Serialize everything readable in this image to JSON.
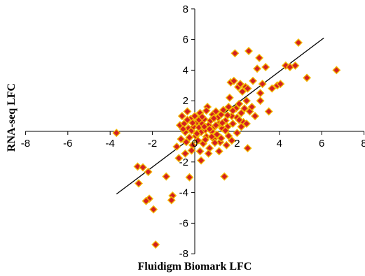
{
  "chart_data": {
    "type": "scatter",
    "title": "",
    "xlabel": "Fluidigm Biomark LFC",
    "ylabel": "RNA-seq LFC",
    "xlim": [
      -8,
      8
    ],
    "ylim": [
      -8,
      8
    ],
    "xticks": [
      -8,
      -6,
      -4,
      -2,
      0,
      2,
      4,
      6,
      8
    ],
    "yticks": [
      -8,
      -6,
      -4,
      -2,
      2,
      4,
      6,
      8
    ],
    "tick_labels_x": [
      "-8",
      "-6",
      "-4",
      "-2",
      "0",
      "2",
      "4",
      "6",
      "8"
    ],
    "tick_labels_y": [
      "-8",
      "-6",
      "-4",
      "-2",
      "2",
      "4",
      "6",
      "8"
    ],
    "grid": false,
    "legend": "none",
    "marker": {
      "shape": "diamond",
      "fill": "#D42020",
      "edge": "#F2B800"
    },
    "trendline": {
      "x": [
        -3.7,
        6.1
      ],
      "y": [
        -4.1,
        6.1
      ],
      "color": "#000000"
    },
    "points": [
      [
        -3.7,
        -0.1
      ],
      [
        -2.7,
        -2.3
      ],
      [
        -2.45,
        -2.35
      ],
      [
        -2.2,
        -2.65
      ],
      [
        -2.65,
        -3.4
      ],
      [
        -2.15,
        -4.4
      ],
      [
        -2.3,
        -4.55
      ],
      [
        -1.95,
        -5.1
      ],
      [
        -1.85,
        -7.4
      ],
      [
        -1.35,
        -2.95
      ],
      [
        -1.05,
        -4.2
      ],
      [
        -1.1,
        -4.5
      ],
      [
        -0.25,
        -3.0
      ],
      [
        -0.85,
        -1.0
      ],
      [
        -0.75,
        -1.75
      ],
      [
        -0.7,
        0.4
      ],
      [
        -0.65,
        -0.5
      ],
      [
        -0.6,
        1.0
      ],
      [
        -0.5,
        0.5
      ],
      [
        -0.45,
        -0.05
      ],
      [
        -0.4,
        -0.7
      ],
      [
        -0.35,
        1.3
      ],
      [
        -0.3,
        0.2
      ],
      [
        -0.25,
        -0.4
      ],
      [
        -0.2,
        0.8
      ],
      [
        -0.15,
        0.05
      ],
      [
        -0.1,
        -0.9
      ],
      [
        -0.05,
        0.3
      ],
      [
        0.0,
        1.0
      ],
      [
        0.05,
        -0.3
      ],
      [
        0.1,
        0.6
      ],
      [
        0.15,
        -0.6
      ],
      [
        0.2,
        0.25
      ],
      [
        0.25,
        1.2
      ],
      [
        0.3,
        -0.05
      ],
      [
        0.35,
        0.5
      ],
      [
        0.4,
        -0.8
      ],
      [
        0.45,
        0.8
      ],
      [
        0.5,
        0.1
      ],
      [
        0.55,
        -0.35
      ],
      [
        0.6,
        1.6
      ],
      [
        0.65,
        0.4
      ],
      [
        0.7,
        -1.1
      ],
      [
        0.75,
        0.7
      ],
      [
        0.8,
        0.0
      ],
      [
        0.85,
        1.1
      ],
      [
        0.9,
        -0.5
      ],
      [
        0.95,
        0.3
      ],
      [
        1.0,
        1.3
      ],
      [
        1.05,
        -0.2
      ],
      [
        1.1,
        0.9
      ],
      [
        1.15,
        0.5
      ],
      [
        1.2,
        -0.7
      ],
      [
        1.25,
        1.1
      ],
      [
        1.3,
        0.2
      ],
      [
        0.25,
        -1.3
      ],
      [
        0.65,
        -1.45
      ],
      [
        0.3,
        -1.9
      ],
      [
        -0.15,
        -1.25
      ],
      [
        -0.45,
        -1.45
      ],
      [
        1.4,
        -2.95
      ],
      [
        1.15,
        -1.3
      ],
      [
        1.5,
        -0.9
      ],
      [
        1.35,
        1.4
      ],
      [
        1.45,
        0.7
      ],
      [
        1.55,
        0.3
      ],
      [
        1.6,
        1.6
      ],
      [
        1.65,
        2.2
      ],
      [
        1.7,
        3.2
      ],
      [
        1.75,
        1.0
      ],
      [
        1.8,
        0.5
      ],
      [
        1.85,
        3.3
      ],
      [
        1.9,
        5.1
      ],
      [
        1.95,
        1.5
      ],
      [
        2.0,
        0.9
      ],
      [
        2.05,
        2.9
      ],
      [
        2.1,
        1.8
      ],
      [
        2.15,
        3.1
      ],
      [
        2.2,
        1.2
      ],
      [
        2.25,
        2.6
      ],
      [
        2.3,
        0.6
      ],
      [
        2.35,
        1.5
      ],
      [
        2.4,
        2.9
      ],
      [
        2.45,
        2.0
      ],
      [
        2.5,
        2.8
      ],
      [
        2.55,
        5.25
      ],
      [
        2.6,
        1.3
      ],
      [
        2.75,
        3.3
      ],
      [
        2.85,
        1.0
      ],
      [
        2.95,
        4.1
      ],
      [
        3.05,
        4.8
      ],
      [
        3.1,
        2.5
      ],
      [
        3.2,
        3.1
      ],
      [
        3.35,
        4.2
      ],
      [
        3.5,
        1.3
      ],
      [
        3.65,
        2.8
      ],
      [
        3.9,
        3.0
      ],
      [
        4.05,
        3.1
      ],
      [
        4.3,
        4.3
      ],
      [
        4.5,
        4.2
      ],
      [
        4.75,
        4.3
      ],
      [
        4.9,
        5.8
      ],
      [
        5.3,
        3.5
      ],
      [
        6.7,
        4.0
      ],
      [
        1.6,
        -0.3
      ],
      [
        1.75,
        -0.6
      ],
      [
        2.0,
        -0.1
      ],
      [
        2.2,
        0.3
      ],
      [
        2.45,
        0.5
      ],
      [
        2.5,
        -1.1
      ],
      [
        2.7,
        1.6
      ],
      [
        3.1,
        2.0
      ],
      [
        1.0,
        0.4
      ],
      [
        0.9,
        0.85
      ],
      [
        0.5,
        -0.55
      ],
      [
        0.2,
        0.75
      ],
      [
        -0.1,
        0.55
      ],
      [
        0.7,
        0.15
      ],
      [
        1.25,
        -0.45
      ],
      [
        1.45,
        0.05
      ],
      [
        0.95,
        -0.75
      ],
      [
        0.35,
        0.95
      ],
      [
        -0.35,
        0.75
      ],
      [
        0.55,
        1.35
      ],
      [
        1.8,
        1.35
      ],
      [
        2.1,
        0.75
      ],
      [
        1.55,
        1.05
      ],
      [
        0.1,
        -0.15
      ],
      [
        -0.55,
        0.15
      ],
      [
        0.45,
        0.3
      ],
      [
        1.3,
        0.55
      ],
      [
        0.8,
        -0.35
      ]
    ]
  }
}
